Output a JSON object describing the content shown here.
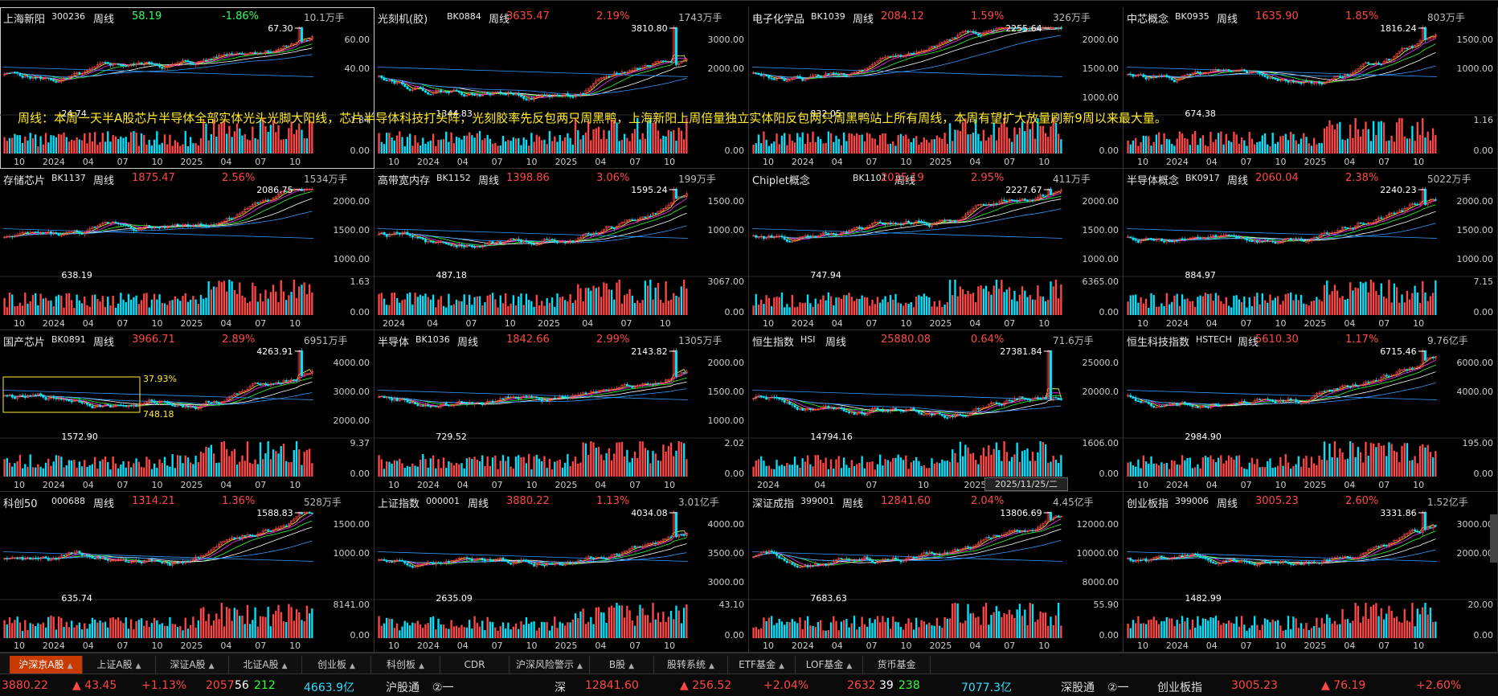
{
  "colors": {
    "up": "#ff4747",
    "down": "#00e5ff",
    "name": "#e8e8e8",
    "ma": [
      "#ffffff",
      "#ffff33",
      "#ff33ff",
      "#33ff33",
      "#ffffff",
      "#3399ff"
    ]
  },
  "panels": [
    {
      "name": "上海新阳",
      "code": "300236",
      "period": "周线",
      "price": "58.19",
      "change": "-1.86%",
      "dir": "down",
      "volume": "10.1万手",
      "high": "67.30",
      "low": "24.74",
      "yticks": [
        "60.00",
        "40.00"
      ],
      "vticks": [
        "1.84",
        "0.00"
      ],
      "xticks": [
        "10",
        "2024",
        "04",
        "07",
        "10",
        "2025",
        "04",
        "07",
        "10"
      ]
    },
    {
      "name": "光刻机(胶)",
      "code": "BK0884",
      "period": "周线",
      "price": "3635.47",
      "change": "2.19%",
      "dir": "up",
      "volume": "1743万手",
      "high": "3810.80",
      "low": "1344.83",
      "yticks": [
        "3000.00",
        "2000.00"
      ],
      "vticks": [
        "0.00"
      ],
      "xticks": [
        "10",
        "2024",
        "04",
        "07",
        "10",
        "2025",
        "04",
        "07",
        "10"
      ]
    },
    {
      "name": "电子化学品",
      "code": "BK1039",
      "period": "周线",
      "price": "2084.12",
      "change": "1.59%",
      "dir": "up",
      "volume": "326万手",
      "high": "2255.64",
      "low": "832.05",
      "yticks": [
        "2000.00",
        "1500.00",
        "1000.00"
      ],
      "vticks": [
        "0.00"
      ],
      "xticks": [
        "10",
        "2024",
        "04",
        "07",
        "10",
        "2025",
        "04",
        "07",
        "10"
      ]
    },
    {
      "name": "中芯概念",
      "code": "BK0935",
      "period": "周线",
      "price": "1635.90",
      "change": "1.85%",
      "dir": "up",
      "volume": "803万手",
      "high": "1816.24",
      "low": "674.38",
      "yticks": [
        "1500.00",
        "1000.00"
      ],
      "vticks": [
        "1.16",
        "0.00"
      ],
      "xticks": [
        "10",
        "2024",
        "04",
        "07",
        "10",
        "2025",
        "04",
        "07",
        "10"
      ]
    },
    {
      "name": "存储芯片",
      "code": "BK1137",
      "period": "周线",
      "price": "1875.47",
      "change": "2.56%",
      "dir": "up",
      "volume": "1534万手",
      "high": "2086.75",
      "low": "638.19",
      "yticks": [
        "2000.00",
        "1500.00",
        "1000.00"
      ],
      "vticks": [
        "1.63",
        "0.00"
      ],
      "xticks": [
        "10",
        "2024",
        "04",
        "07",
        "10",
        "2025",
        "04",
        "07",
        "10"
      ]
    },
    {
      "name": "高带宽内存",
      "code": "BK1152",
      "period": "周线",
      "price": "1398.86",
      "change": "3.06%",
      "dir": "up",
      "volume": "199万手",
      "high": "1595.24",
      "low": "487.18",
      "yticks": [
        "1500.00",
        "1000.00"
      ],
      "vticks": [
        "3067.00",
        "0.00"
      ],
      "xticks": [
        "2024",
        "04",
        "07",
        "10",
        "2025",
        "04",
        "07",
        "10"
      ]
    },
    {
      "name": "Chiplet概念",
      "code": "BK1101",
      "period": "周线",
      "price": "2025.19",
      "change": "2.95%",
      "dir": "up",
      "volume": "411万手",
      "high": "2227.67",
      "low": "747.94",
      "yticks": [
        "2000.00",
        "1500.00",
        "1000.00"
      ],
      "vticks": [
        "6365.00",
        "0.00"
      ],
      "xticks": [
        "10",
        "2024",
        "04",
        "07",
        "10",
        "2025",
        "04",
        "07",
        "10"
      ]
    },
    {
      "name": "半导体概念",
      "code": "BK0917",
      "period": "周线",
      "price": "2060.04",
      "change": "2.38%",
      "dir": "up",
      "volume": "5022万手",
      "high": "2240.23",
      "low": "884.97",
      "yticks": [
        "2000.00",
        "1500.00",
        "1000.00"
      ],
      "vticks": [
        "7.15",
        "0.00"
      ],
      "xticks": [
        "10",
        "2024",
        "04",
        "07",
        "10",
        "2025",
        "04",
        "07",
        "10"
      ]
    },
    {
      "name": "国产芯片",
      "code": "BK0891",
      "period": "周线",
      "price": "3966.71",
      "change": "2.89%",
      "dir": "up",
      "volume": "6951万手",
      "high": "4263.91",
      "low": "1572.90",
      "yticks": [
        "4000.00",
        "3000.00",
        "2000.00"
      ],
      "vticks": [
        "9.37",
        "0.00"
      ],
      "xticks": [
        "10",
        "2024",
        "04",
        "07",
        "10",
        "2025",
        "04",
        "07",
        "10"
      ],
      "extra1": "37.93%",
      "extra2": "748.18"
    },
    {
      "name": "半导体",
      "code": "BK1036",
      "period": "周线",
      "price": "1842.66",
      "change": "2.99%",
      "dir": "up",
      "volume": "1305万手",
      "high": "2143.82",
      "low": "729.52",
      "yticks": [
        "2000.00",
        "1500.00",
        "1000.00"
      ],
      "vticks": [
        "2.02",
        "0.00"
      ],
      "xticks": [
        "10",
        "2024",
        "04",
        "07",
        "10",
        "2025",
        "04",
        "07",
        "10"
      ]
    },
    {
      "name": "恒生指数",
      "code": "HSI",
      "period": "周线",
      "price": "25880.08",
      "change": "0.64%",
      "dir": "up",
      "volume": "71.6万手",
      "high": "27381.84",
      "low": "14794.16",
      "yticks": [
        "25000.0",
        "20000.0"
      ],
      "vticks": [
        "1606.00",
        "0.00"
      ],
      "xticks": [
        "2024",
        "04",
        "07",
        "10",
        "2025",
        "04"
      ]
    },
    {
      "name": "恒生科技指数",
      "code": "HSTECH",
      "period": "周线",
      "price": "5610.30",
      "change": "1.17%",
      "dir": "up",
      "volume": "9.76亿手",
      "high": "6715.46",
      "low": "2984.90",
      "yticks": [
        "6000.00",
        "4000.00"
      ],
      "vticks": [
        "195.00",
        "0.00"
      ],
      "xticks": [
        "10",
        "2024",
        "04",
        "07",
        "10",
        "2025",
        "04",
        "07",
        "10"
      ]
    },
    {
      "name": "科创50",
      "code": "000688",
      "period": "周线",
      "price": "1314.21",
      "change": "1.36%",
      "dir": "up",
      "volume": "528万手",
      "high": "1588.83",
      "low": "635.74",
      "yticks": [
        "1500.00",
        "1000.00"
      ],
      "vticks": [
        "8141.00",
        "0.00"
      ],
      "xticks": [
        "10",
        "2024",
        "04",
        "07",
        "10",
        "2025",
        "04",
        "07",
        "10"
      ]
    },
    {
      "name": "上证指数",
      "code": "000001",
      "period": "周线",
      "price": "3880.22",
      "change": "1.13%",
      "dir": "up",
      "volume": "3.01亿手",
      "high": "4034.08",
      "low": "2635.09",
      "yticks": [
        "4000.00",
        "3500.00",
        "3000.00"
      ],
      "vticks": [
        "43.10",
        "0.00"
      ],
      "xticks": [
        "10",
        "2024",
        "04",
        "07",
        "10",
        "2025",
        "04",
        "07",
        "10"
      ]
    },
    {
      "name": "深证成指",
      "code": "399001",
      "period": "周线",
      "price": "12841.60",
      "change": "2.04%",
      "dir": "up",
      "volume": "4.45亿手",
      "high": "13806.69",
      "low": "7683.63",
      "yticks": [
        "12000.00",
        "10000.00",
        "8000.00"
      ],
      "vticks": [
        "55.90",
        "0.00"
      ],
      "xticks": [
        "10",
        "2024",
        "04",
        "07",
        "10",
        "2025",
        "04",
        "07",
        "10"
      ]
    },
    {
      "name": "创业板指",
      "code": "399006",
      "period": "周线",
      "price": "3005.23",
      "change": "2.60%",
      "dir": "up",
      "volume": "1.52亿手",
      "high": "3331.86",
      "low": "1482.99",
      "yticks": [
        "3000.00",
        "2000.00"
      ],
      "vticks": [
        "20.00",
        "0.00"
      ],
      "xticks": [
        "10",
        "2024",
        "04",
        "07",
        "10",
        "2025",
        "04",
        "07",
        "10"
      ]
    }
  ],
  "note": "周线：本周一天半A股芯片半导体全部实体光头光脚大阳线，芯片半导体科技打头阵，光刻胶率先反包两只周黑鸭，上海新阳上周倍量独立实体阳反包两只周黑鸭站上所有周线，本周有望扩大放量刷新9周以来最大量。",
  "date_marker": "2025/11/25/二",
  "tabs": [
    {
      "label": "沪深京A股",
      "active": true,
      "arrow": true
    },
    {
      "label": "上证A股",
      "arrow": true
    },
    {
      "label": "深证A股",
      "arrow": true
    },
    {
      "label": "北证A股",
      "arrow": true
    },
    {
      "label": "创业板",
      "arrow": true
    },
    {
      "label": "科创板",
      "arrow": true
    },
    {
      "label": "CDR",
      "arrow": false
    },
    {
      "label": "沪深风险警示",
      "arrow": true
    },
    {
      "label": "B股",
      "arrow": true
    },
    {
      "label": "股转系统",
      "arrow": true
    },
    {
      "label": "ETF基金",
      "arrow": true
    },
    {
      "label": "LOF基金",
      "arrow": true
    },
    {
      "label": "货币基金",
      "arrow": false
    }
  ],
  "status": {
    "sh_value": "3880.22",
    "sh_change": "▲ 43.45",
    "sh_pct": "+1.13%",
    "sh_up": "2057",
    "sh_flat": "56",
    "sh_down": "212",
    "sh_amount": "4663.9亿",
    "hgt": "沪股通",
    "hgt_flag": "②一",
    "sz_label": "深",
    "sz_value": "12841.60",
    "sz_change": "▲ 256.52",
    "sz_pct": "+2.04%",
    "sz_up": "2632",
    "sz_flat": "39",
    "sz_down": "238",
    "sz_amount": "7077.3亿",
    "sgt": "深股通",
    "sgt_flag": "②一",
    "cyb_label": "创业板指",
    "cyb_value": "3005.23",
    "cyb_change": "▲ 76.19",
    "cyb_pct": "+2.60%"
  }
}
